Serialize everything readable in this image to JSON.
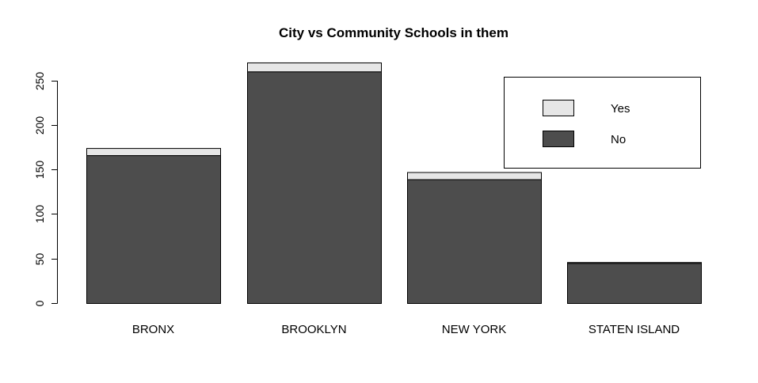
{
  "chart_data": {
    "type": "bar",
    "stacked": true,
    "title": "City vs Community Schools in them",
    "xlabel": "",
    "ylabel": "",
    "categories": [
      "BRONX",
      "BROOKLYN",
      "NEW YORK",
      "STATEN ISLAND"
    ],
    "series": [
      {
        "name": "No",
        "values": [
          166,
          260,
          139,
          45
        ],
        "color": "#4d4d4d"
      },
      {
        "name": "Yes",
        "values": [
          8,
          10,
          8,
          1
        ],
        "color": "#e6e6e6"
      }
    ],
    "ylim": [
      0,
      250
    ],
    "yticks": [
      0,
      50,
      100,
      150,
      200,
      250
    ],
    "grid": false,
    "legend": {
      "position": "top-right",
      "entries": [
        "Yes",
        "No"
      ]
    }
  }
}
